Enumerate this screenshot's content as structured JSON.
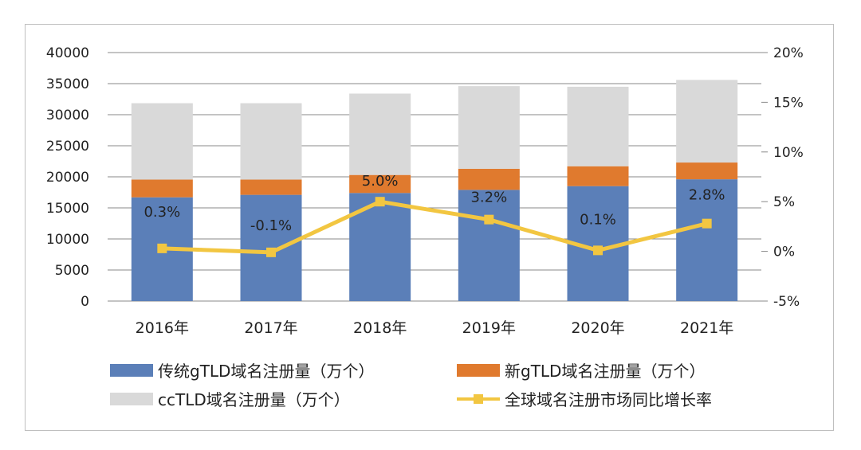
{
  "chart_data": {
    "type": "bar",
    "stacked": true,
    "categories": [
      "2016年",
      "2017年",
      "2018年",
      "2019年",
      "2020年",
      "2021年"
    ],
    "series": [
      {
        "name": "传统gTLD域名注册量（万个）",
        "type": "bar",
        "axis": "left",
        "color": "#5b7fb8",
        "values": [
          16700,
          17100,
          17400,
          17900,
          18500,
          19600
        ]
      },
      {
        "name": "新gTLD域名注册量（万个）",
        "type": "bar",
        "axis": "left",
        "color": "#e07a2e",
        "values": [
          2850,
          2450,
          2900,
          3400,
          3200,
          2700
        ]
      },
      {
        "name": "ccTLD域名注册量（万个）",
        "type": "bar",
        "axis": "left",
        "color": "#d9d9d9",
        "values": [
          12300,
          12300,
          13100,
          13300,
          12800,
          13300
        ]
      },
      {
        "name": "全球域名注册市场同比增长率",
        "type": "line",
        "axis": "right",
        "color": "#f2c641",
        "values": [
          0.3,
          -0.1,
          5.0,
          3.2,
          0.1,
          2.8
        ],
        "labels": [
          "0.3%",
          "-0.1%",
          "5.0%",
          "3.2%",
          "0.1%",
          "2.8%"
        ]
      }
    ],
    "y_left": {
      "range": [
        0,
        40000
      ],
      "ticks": [
        "0",
        "5000",
        "10000",
        "15000",
        "20000",
        "25000",
        "30000",
        "35000",
        "40000"
      ]
    },
    "y_right": {
      "range": [
        -5,
        20
      ],
      "ticks": [
        "-5%",
        "0%",
        "5%",
        "10%",
        "15%",
        "20%"
      ]
    },
    "grid": true,
    "legend": "bottom"
  }
}
